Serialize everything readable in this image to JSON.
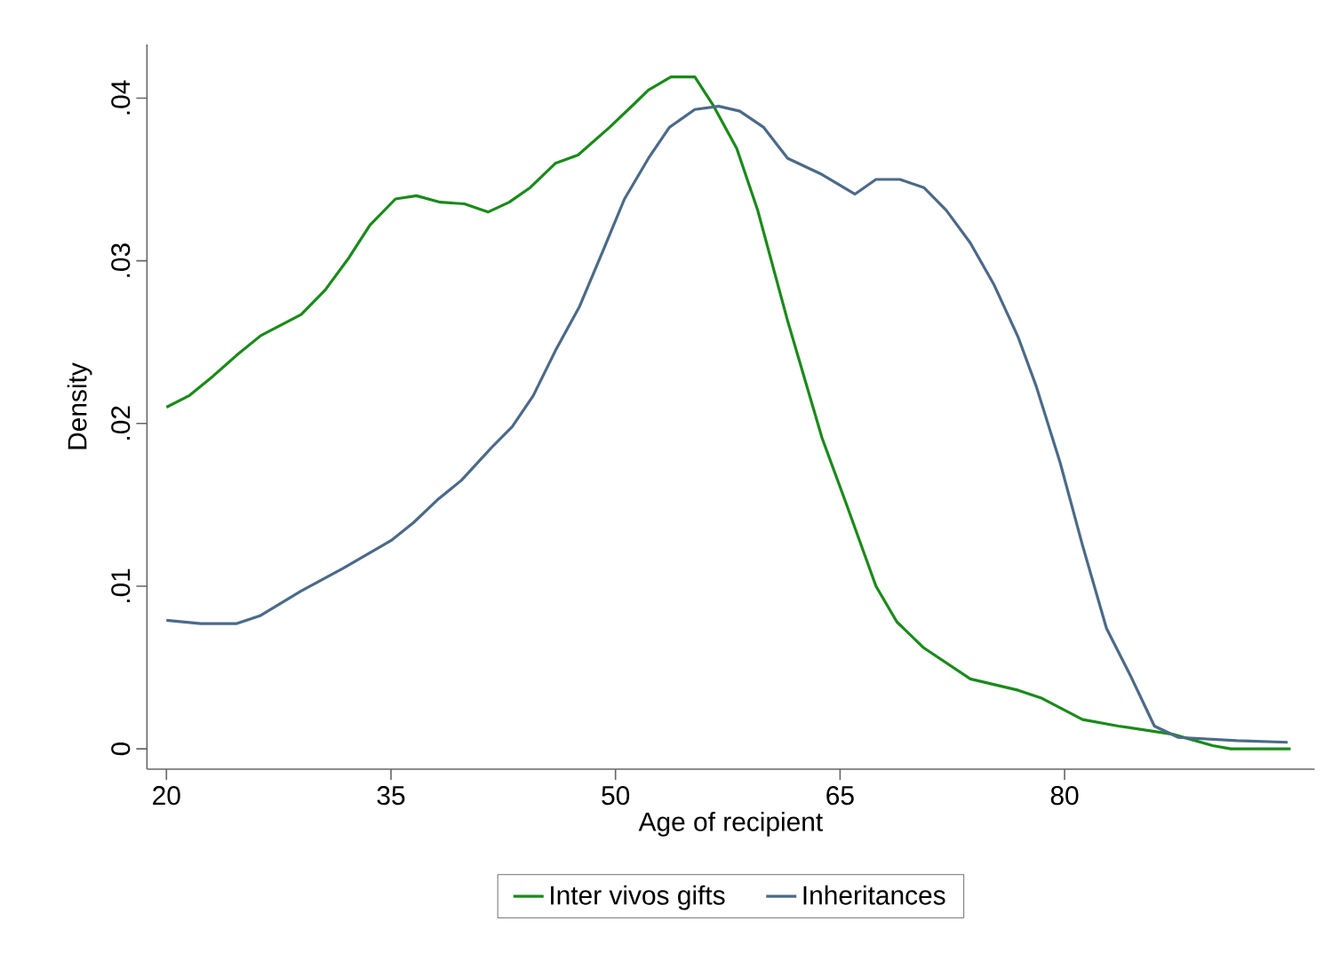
{
  "chart_data": {
    "type": "line",
    "xlabel": "Age of recipient",
    "ylabel": "Density",
    "xlim": [
      18.7,
      96.7
    ],
    "ylim": [
      -0.00125,
      0.0433
    ],
    "xticks": [
      20,
      35,
      50,
      65,
      80
    ],
    "yticks": [
      0,
      {
        "value": 0.01,
        "label": ".01"
      },
      {
        "value": 0.02,
        "label": ".02"
      },
      {
        "value": 0.03,
        "label": ".03"
      },
      {
        "value": 0.04,
        "label": ".04"
      }
    ],
    "grid": false,
    "legend": "bottom",
    "marker": "none",
    "line_style": "solid",
    "series": [
      {
        "name": "Inter vivos gifts",
        "color": "#1a8a1a",
        "x": [
          20,
          21.5,
          23.1,
          24.7,
          26.3,
          29.0,
          30.6,
          32.2,
          33.6,
          35.3,
          36.7,
          38.3,
          39.9,
          41.5,
          42.9,
          44.3,
          46.0,
          47.5,
          49.6,
          51.2,
          52.2,
          53.7,
          55.3,
          56.5,
          58.1,
          59.5,
          61.5,
          63.8,
          65.4,
          67.4,
          68.8,
          70.6,
          73.7,
          76.9,
          78.5,
          81.2,
          83.6,
          87.2,
          89.9,
          91.1,
          95.1
        ],
        "values": [
          0.021,
          0.0217,
          0.0229,
          0.0242,
          0.0254,
          0.0267,
          0.0282,
          0.0302,
          0.0322,
          0.0338,
          0.034,
          0.0336,
          0.0335,
          0.033,
          0.0336,
          0.0345,
          0.036,
          0.0365,
          0.0382,
          0.0396,
          0.0405,
          0.0413,
          0.0413,
          0.0396,
          0.0369,
          0.0331,
          0.0263,
          0.0191,
          0.0151,
          0.01,
          0.0078,
          0.0062,
          0.0043,
          0.0036,
          0.0031,
          0.0018,
          0.0014,
          0.0009,
          0.0002,
          0.0,
          0.0
        ]
      },
      {
        "name": "Inheritances",
        "color": "#4b6a88",
        "x": [
          20,
          22.3,
          24.7,
          26.3,
          29.0,
          31.8,
          35.0,
          36.5,
          38.1,
          39.7,
          41.7,
          43.1,
          44.5,
          46.0,
          47.6,
          49.2,
          50.6,
          52.2,
          53.6,
          55.3,
          56.9,
          58.3,
          59.9,
          61.5,
          63.8,
          66.0,
          67.4,
          69.0,
          70.6,
          72.1,
          73.7,
          75.3,
          76.9,
          78.1,
          79.7,
          81.2,
          82.8,
          84.4,
          86.0,
          87.6,
          91.5,
          94.9
        ],
        "values": [
          0.0079,
          0.0077,
          0.0077,
          0.0082,
          0.0097,
          0.0111,
          0.0128,
          0.0139,
          0.0153,
          0.0165,
          0.0185,
          0.0198,
          0.0217,
          0.0245,
          0.0272,
          0.0307,
          0.0338,
          0.0363,
          0.0382,
          0.0393,
          0.0395,
          0.0392,
          0.0382,
          0.0363,
          0.0353,
          0.0341,
          0.035,
          0.035,
          0.0345,
          0.0331,
          0.0311,
          0.0285,
          0.0253,
          0.0223,
          0.0176,
          0.0125,
          0.0074,
          0.0045,
          0.0014,
          0.0007,
          0.0005,
          0.0004
        ]
      }
    ]
  }
}
